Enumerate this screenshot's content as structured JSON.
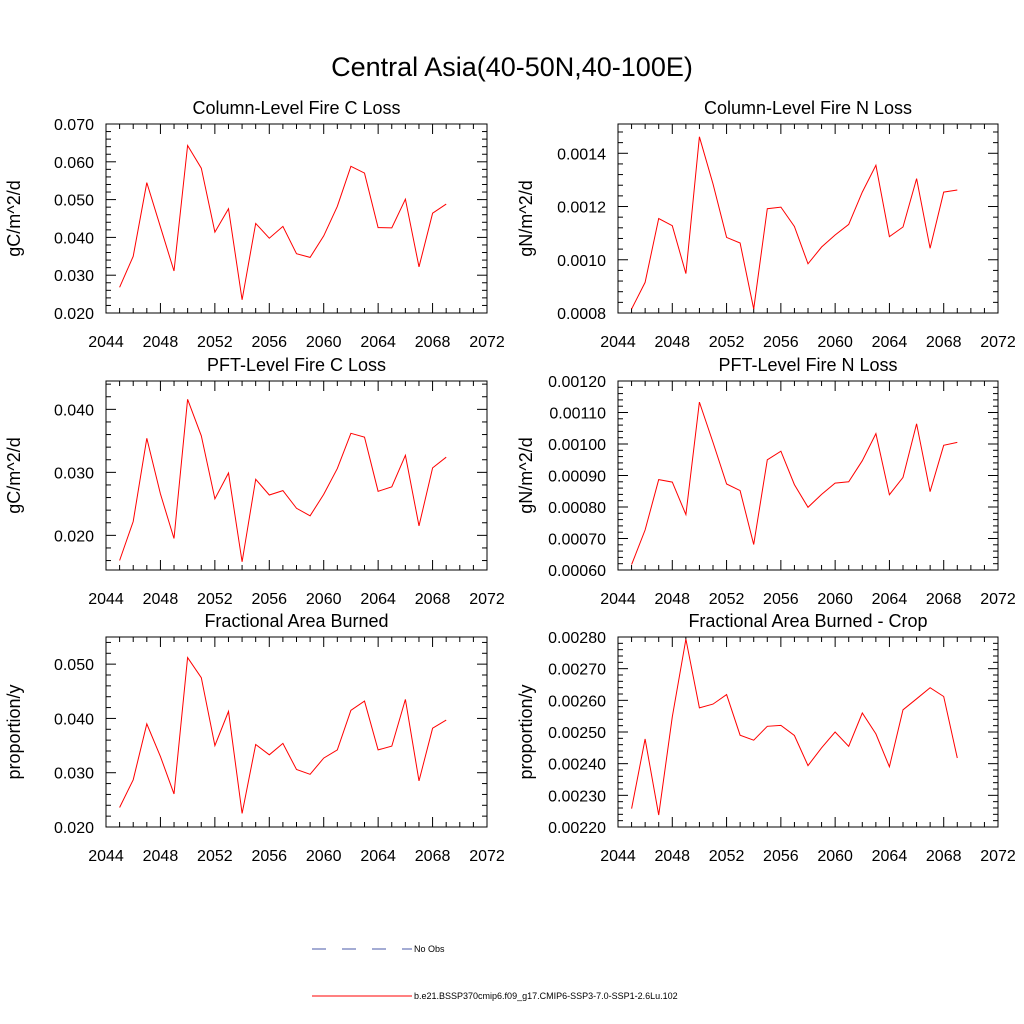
{
  "title": "Central Asia(40-50N,40-100E)",
  "legend": {
    "items": [
      {
        "label": "No Obs",
        "color": "#4a5aa8",
        "style": "dashed"
      },
      {
        "label": "b.e21.BSSP370cmip6.f09_g17.CMIP6-SSP3-7.0-SSP1-2.6Lu.102",
        "color": "#ff0000",
        "style": "solid"
      }
    ]
  },
  "chart_data": [
    {
      "type": "line",
      "title": "Column-Level Fire C Loss",
      "ylabel": "gC/m^2/d",
      "xlim": [
        2044,
        2072
      ],
      "xticks": [
        "2044",
        "2048",
        "2052",
        "2056",
        "2060",
        "2064",
        "2068",
        "2072"
      ],
      "ylim": [
        0.02,
        0.07
      ],
      "yticks": [
        "0.020",
        "0.030",
        "0.040",
        "0.050",
        "0.060",
        "0.070"
      ],
      "series": [
        {
          "color": "#ff0000",
          "x": [
            2045,
            2046,
            2047,
            2048,
            2049,
            2050,
            2051,
            2052,
            2053,
            2054,
            2055,
            2056,
            2057,
            2058,
            2059,
            2060,
            2061,
            2062,
            2063,
            2064,
            2065,
            2066,
            2067,
            2068,
            2069
          ],
          "y": [
            0.0268,
            0.035,
            0.0545,
            0.0428,
            0.0311,
            0.0643,
            0.0583,
            0.0414,
            0.0476,
            0.0235,
            0.0437,
            0.0398,
            0.0429,
            0.0357,
            0.0347,
            0.0404,
            0.0482,
            0.0588,
            0.057,
            0.0426,
            0.0425,
            0.0501,
            0.0322,
            0.0464,
            0.0488
          ]
        }
      ]
    },
    {
      "type": "line",
      "title": "Column-Level Fire N Loss",
      "ylabel": "gN/m^2/d",
      "xlim": [
        2044,
        2072
      ],
      "xticks": [
        "2044",
        "2048",
        "2052",
        "2056",
        "2060",
        "2064",
        "2068",
        "2072"
      ],
      "ylim": [
        0.0008,
        0.00151
      ],
      "yticks": [
        "0.0008",
        "0.0010",
        "0.0012",
        "0.0014"
      ],
      "series": [
        {
          "color": "#ff0000",
          "x": [
            2045,
            2046,
            2047,
            2048,
            2049,
            2050,
            2051,
            2052,
            2053,
            2054,
            2055,
            2056,
            2057,
            2058,
            2059,
            2060,
            2061,
            2062,
            2063,
            2064,
            2065,
            2066,
            2067,
            2068,
            2069
          ],
          "y": [
            0.000815,
            0.000915,
            0.001155,
            0.001128,
            0.000948,
            0.001462,
            0.001285,
            0.001084,
            0.001063,
            0.000815,
            0.001192,
            0.001198,
            0.001125,
            0.000985,
            0.001048,
            0.001093,
            0.001133,
            0.001254,
            0.001355,
            0.001087,
            0.001123,
            0.001305,
            0.001043,
            0.001254,
            0.001262
          ]
        }
      ]
    },
    {
      "type": "line",
      "title": "PFT-Level Fire C Loss",
      "ylabel": "gC/m^2/d",
      "xlim": [
        2044,
        2072
      ],
      "xticks": [
        "2044",
        "2048",
        "2052",
        "2056",
        "2060",
        "2064",
        "2068",
        "2072"
      ],
      "ylim": [
        0.0145,
        0.0445
      ],
      "yticks": [
        "0.020",
        "0.030",
        "0.040"
      ],
      "series": [
        {
          "color": "#ff0000",
          "x": [
            2045,
            2046,
            2047,
            2048,
            2049,
            2050,
            2051,
            2052,
            2053,
            2054,
            2055,
            2056,
            2057,
            2058,
            2059,
            2060,
            2061,
            2062,
            2063,
            2064,
            2065,
            2066,
            2067,
            2068,
            2069
          ],
          "y": [
            0.016,
            0.0222,
            0.0354,
            0.0266,
            0.0195,
            0.0416,
            0.0358,
            0.0258,
            0.0299,
            0.0158,
            0.0289,
            0.0264,
            0.0271,
            0.0243,
            0.0231,
            0.0265,
            0.0306,
            0.0362,
            0.0356,
            0.027,
            0.0277,
            0.0327,
            0.0215,
            0.0307,
            0.0324
          ]
        }
      ]
    },
    {
      "type": "line",
      "title": "PFT-Level Fire N Loss",
      "ylabel": "gN/m^2/d",
      "xlim": [
        2044,
        2072
      ],
      "xticks": [
        "2044",
        "2048",
        "2052",
        "2056",
        "2060",
        "2064",
        "2068",
        "2072"
      ],
      "ylim": [
        0.0006,
        0.0012
      ],
      "yticks": [
        "0.00060",
        "0.00070",
        "0.00080",
        "0.00090",
        "0.00100",
        "0.00110",
        "0.00120"
      ],
      "series": [
        {
          "color": "#ff0000",
          "x": [
            2045,
            2046,
            2047,
            2048,
            2049,
            2050,
            2051,
            2052,
            2053,
            2054,
            2055,
            2056,
            2057,
            2058,
            2059,
            2060,
            2061,
            2062,
            2063,
            2064,
            2065,
            2066,
            2067,
            2068,
            2069
          ],
          "y": [
            0.000617,
            0.000727,
            0.000887,
            0.000879,
            0.000776,
            0.001133,
            0.001005,
            0.000873,
            0.000852,
            0.000681,
            0.00095,
            0.000977,
            0.000871,
            0.000799,
            0.00084,
            0.000876,
            0.00088,
            0.000947,
            0.001033,
            0.000839,
            0.000894,
            0.001064,
            0.000849,
            0.000996,
            0.001005
          ]
        }
      ]
    },
    {
      "type": "line",
      "title": "Fractional Area Burned",
      "ylabel": "proportion/y",
      "xlim": [
        2044,
        2072
      ],
      "xticks": [
        "2044",
        "2048",
        "2052",
        "2056",
        "2060",
        "2064",
        "2068",
        "2072"
      ],
      "ylim": [
        0.02,
        0.055
      ],
      "yticks": [
        "0.020",
        "0.030",
        "0.040",
        "0.050"
      ],
      "series": [
        {
          "color": "#ff0000",
          "x": [
            2045,
            2046,
            2047,
            2048,
            2049,
            2050,
            2051,
            2052,
            2053,
            2054,
            2055,
            2056,
            2057,
            2058,
            2059,
            2060,
            2061,
            2062,
            2063,
            2064,
            2065,
            2066,
            2067,
            2068,
            2069
          ],
          "y": [
            0.0236,
            0.0287,
            0.039,
            0.033,
            0.0261,
            0.0512,
            0.0475,
            0.035,
            0.0413,
            0.0225,
            0.0352,
            0.0333,
            0.0354,
            0.0306,
            0.0297,
            0.0327,
            0.0342,
            0.0415,
            0.0432,
            0.0342,
            0.0349,
            0.0435,
            0.0285,
            0.0382,
            0.0397
          ]
        }
      ]
    },
    {
      "type": "line",
      "title": "Fractional Area Burned - Crop",
      "ylabel": "proportion/y",
      "xlim": [
        2044,
        2072
      ],
      "xticks": [
        "2044",
        "2048",
        "2052",
        "2056",
        "2060",
        "2064",
        "2068",
        "2072"
      ],
      "ylim": [
        0.0022,
        0.0028
      ],
      "yticks": [
        "0.00220",
        "0.00230",
        "0.00240",
        "0.00250",
        "0.00260",
        "0.00270",
        "0.00280"
      ],
      "series": [
        {
          "color": "#ff0000",
          "x": [
            2045,
            2046,
            2047,
            2048,
            2049,
            2050,
            2051,
            2052,
            2053,
            2054,
            2055,
            2056,
            2057,
            2058,
            2059,
            2060,
            2061,
            2062,
            2063,
            2064,
            2065,
            2066,
            2067,
            2068,
            2069
          ],
          "y": [
            0.002258,
            0.002478,
            0.002238,
            0.002548,
            0.002793,
            0.002576,
            0.002588,
            0.002618,
            0.00249,
            0.002474,
            0.002518,
            0.002521,
            0.002489,
            0.002394,
            0.00245,
            0.0025,
            0.002455,
            0.00256,
            0.002494,
            0.00239,
            0.00257,
            0.002605,
            0.00264,
            0.002612,
            0.002418
          ]
        }
      ]
    }
  ]
}
